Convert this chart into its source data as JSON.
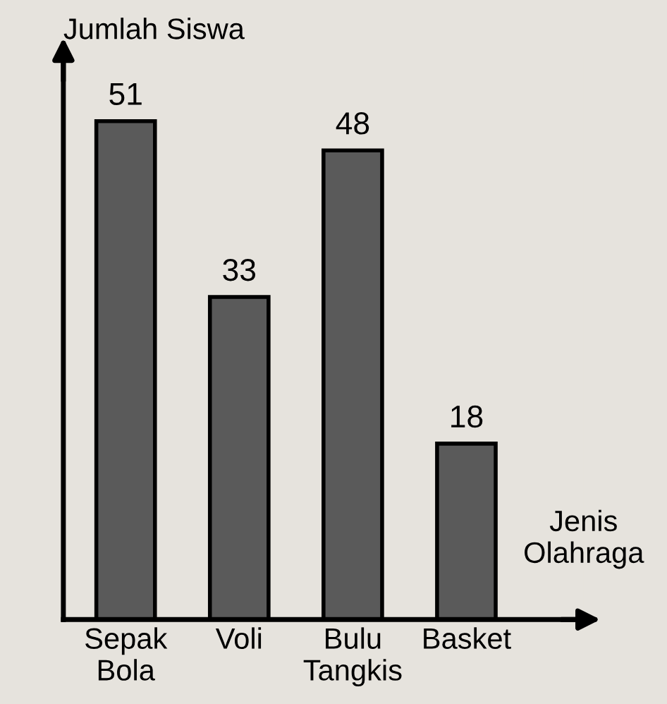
{
  "chart_data": {
    "type": "bar",
    "categories": [
      "Sepak\nBola",
      "Voli",
      "Bulu\nTangkis",
      "Basket"
    ],
    "values": [
      51,
      33,
      48,
      18
    ],
    "color": "#5a5a5a",
    "xlabel": "Jenis\nOlahraga",
    "ylabel": "Jumlah Siswa",
    "data_labels": true,
    "grid": false,
    "legend": false
  }
}
